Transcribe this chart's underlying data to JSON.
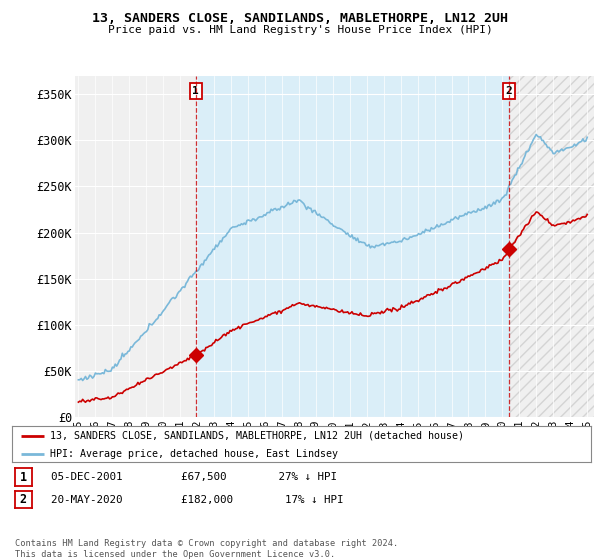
{
  "title": "13, SANDERS CLOSE, SANDILANDS, MABLETHORPE, LN12 2UH",
  "subtitle": "Price paid vs. HM Land Registry's House Price Index (HPI)",
  "ylim": [
    0,
    370000
  ],
  "yticks": [
    0,
    50000,
    100000,
    150000,
    200000,
    250000,
    300000,
    350000
  ],
  "ytick_labels": [
    "£0",
    "£50K",
    "£100K",
    "£150K",
    "£200K",
    "£250K",
    "£300K",
    "£350K"
  ],
  "xmin": 1995,
  "xmax": 2025,
  "sale1_date": 2001.92,
  "sale1_price": 67500,
  "sale2_date": 2020.38,
  "sale2_price": 182000,
  "hpi_color": "#7ab8d9",
  "price_color": "#cc0000",
  "vline_color": "#cc0000",
  "fill_color": "#daeef8",
  "legend_line1": "13, SANDERS CLOSE, SANDILANDS, MABLETHORPE, LN12 2UH (detached house)",
  "legend_line2": "HPI: Average price, detached house, East Lindsey",
  "footnote": "Contains HM Land Registry data © Crown copyright and database right 2024.\nThis data is licensed under the Open Government Licence v3.0.",
  "bg_color": "#ffffff",
  "plot_bg_color": "#f0f0f0"
}
